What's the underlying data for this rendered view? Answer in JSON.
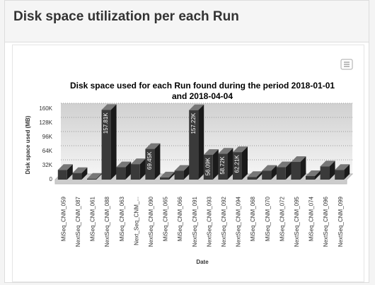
{
  "header": {
    "title": "Disk space utilization per each Run"
  },
  "chart_data": {
    "type": "bar3d",
    "title": "Disk space used for each Run found during the period 2018-01-01 and 2018-04-04",
    "x_label": "Date",
    "y_label": "Disk space used (MB)",
    "categories": [
      "MiSeq_CNM_059",
      "NextSeq_CNM_087",
      "MiSeq_CNM_061",
      "NextSeq_CNM_088",
      "MiSeq_CNM_063",
      "Next_Seq_CNM_...",
      "NextSeq_CNM_090",
      "MiSeq_CNM_065",
      "MiSeq_CNM_066",
      "NextSeq_CNM_091",
      "NextSeq_CNM_093",
      "NextSeq_CNM_092",
      "NextSeq_CNM_094",
      "MiSeq_CNM_068",
      "MiSeq_CNM_070",
      "MiSeq_CNM_072",
      "NextSeq_CNM_095",
      "MiSeq_CNM_074",
      "NextSeq_CNM_096",
      "NextSeq_CNM_099"
    ],
    "values": [
      22000,
      15000,
      2000,
      157810,
      28000,
      35000,
      69450,
      5000,
      20000,
      157220,
      56090,
      58720,
      62210,
      6000,
      20000,
      28000,
      40000,
      8000,
      30000,
      22000
    ],
    "value_labels": [
      null,
      null,
      null,
      "157.81K",
      null,
      null,
      "69.45K",
      null,
      null,
      "157.22K",
      "56.09K",
      "58.72K",
      "62.21K",
      null,
      null,
      null,
      null,
      null,
      null,
      null
    ],
    "color": "#3a3a3a",
    "ylim": [
      0,
      160000
    ],
    "yticks": [
      0,
      {
        "value": 32000,
        "label": "32K"
      },
      {
        "value": 64000,
        "label": "64K"
      },
      {
        "value": 96000,
        "label": "96K"
      },
      {
        "value": 128000,
        "label": "128K"
      },
      {
        "value": 160000,
        "label": "160K"
      }
    ],
    "grid": true
  }
}
